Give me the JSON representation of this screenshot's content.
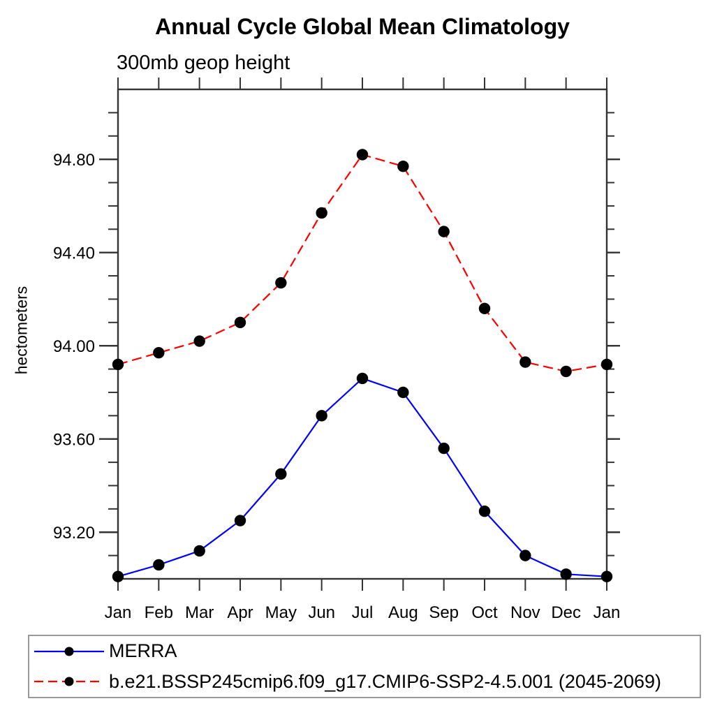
{
  "chart_data": {
    "type": "line",
    "title": "Annual Cycle Global Mean Climatology",
    "subtitle": "300mb geop height",
    "ylabel": "hectometers",
    "categories": [
      "Jan",
      "Feb",
      "Mar",
      "Apr",
      "May",
      "Jun",
      "Jul",
      "Aug",
      "Sep",
      "Oct",
      "Nov",
      "Dec",
      "Jan"
    ],
    "series": [
      {
        "name": "MERRA",
        "color": "#0000ff",
        "line_style": "solid",
        "marker": "filled-circle",
        "marker_color": "#000000",
        "values": [
          93.01,
          93.06,
          93.12,
          93.25,
          93.45,
          93.7,
          93.86,
          93.8,
          93.56,
          93.29,
          93.1,
          93.02,
          93.01
        ]
      },
      {
        "name": "b.e21.BSSP245cmip6.f09_g17.CMIP6-SSP2-4.5.001 (2045-2069)",
        "color": "#ff0000",
        "line_style": "dashed",
        "marker": "filled-circle",
        "marker_color": "#000000",
        "values": [
          93.92,
          93.97,
          94.02,
          94.1,
          94.27,
          94.57,
          94.82,
          94.77,
          94.49,
          94.16,
          93.93,
          93.89,
          93.92
        ]
      }
    ],
    "ylim": [
      93.0,
      95.1
    ],
    "y_major_ticks": [
      93.2,
      93.6,
      94.0,
      94.4,
      94.8
    ],
    "y_major_tick_labels": [
      "93.20",
      "93.60",
      "94.00",
      "94.40",
      "94.80"
    ],
    "y_minor_tick_step": 0.1,
    "grid": false,
    "legend_position": "bottom-left-box",
    "axis_color": "#333333",
    "text_color": "#000000"
  }
}
